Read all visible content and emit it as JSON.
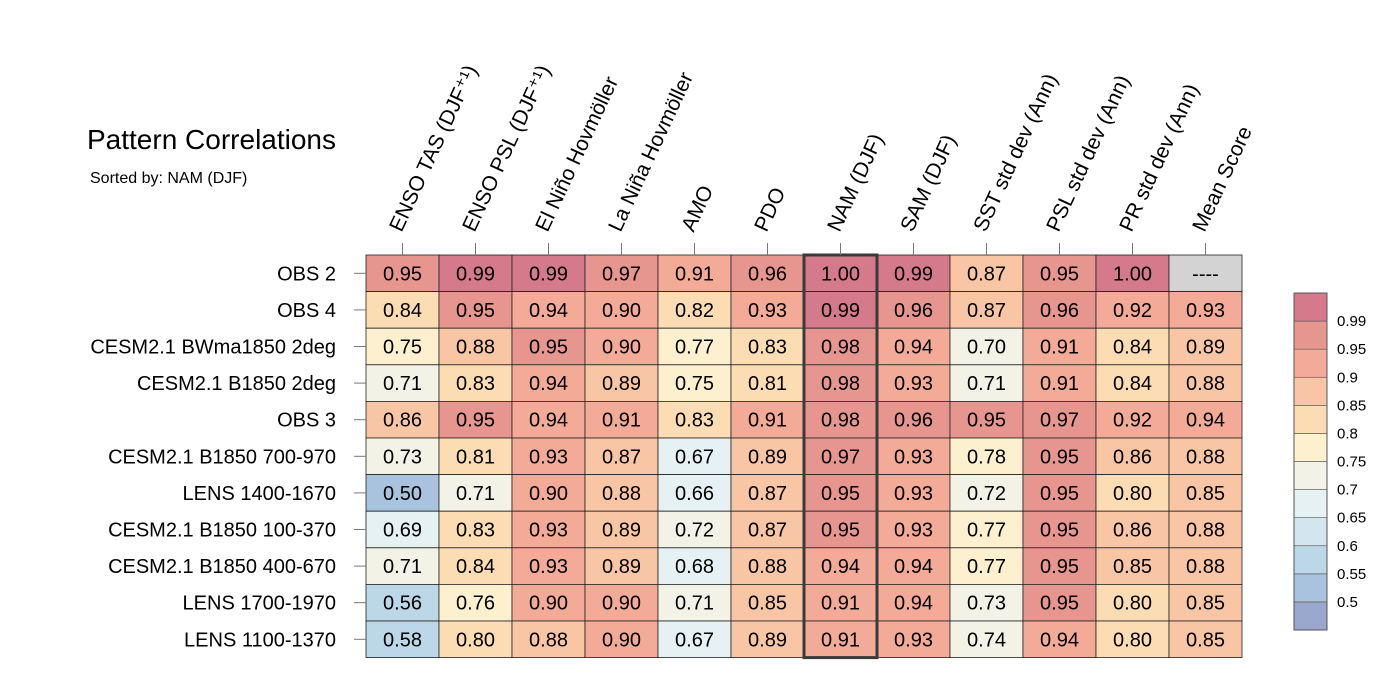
{
  "chart_data": {
    "type": "heatmap",
    "title": "Pattern Correlations",
    "subtitle": "Sorted by: NAM (DJF)",
    "columns": [
      "ENSO TAS (DJF⁺¹)",
      "ENSO PSL (DJF⁺¹)",
      "El Niño Hovmöller",
      "La Niña Hovmöller",
      "AMO",
      "PDO",
      "NAM (DJF)",
      "SAM (DJF)",
      "SST std dev (Ann)",
      "PSL std dev (Ann)",
      "PR std dev (Ann)",
      "Mean Score"
    ],
    "rows": [
      "OBS 2",
      "OBS 4",
      "CESM2.1 BWma1850 2deg",
      "CESM2.1 B1850 2deg",
      "OBS 3",
      "CESM2.1 B1850 700-970",
      "LENS 1400-1670",
      "CESM2.1 B1850 100-370",
      "CESM2.1 B1850 400-670",
      "LENS 1700-1970",
      "LENS 1100-1370"
    ],
    "values": [
      [
        0.95,
        0.99,
        0.99,
        0.97,
        0.91,
        0.96,
        1.0,
        0.99,
        0.87,
        0.95,
        1.0,
        null
      ],
      [
        0.84,
        0.95,
        0.94,
        0.9,
        0.82,
        0.93,
        0.99,
        0.96,
        0.87,
        0.96,
        0.92,
        0.93
      ],
      [
        0.75,
        0.88,
        0.95,
        0.9,
        0.77,
        0.83,
        0.98,
        0.94,
        0.7,
        0.91,
        0.84,
        0.89
      ],
      [
        0.71,
        0.83,
        0.94,
        0.89,
        0.75,
        0.81,
        0.98,
        0.93,
        0.71,
        0.91,
        0.84,
        0.88
      ],
      [
        0.86,
        0.95,
        0.94,
        0.91,
        0.83,
        0.91,
        0.98,
        0.96,
        0.95,
        0.97,
        0.92,
        0.94
      ],
      [
        0.73,
        0.81,
        0.93,
        0.87,
        0.67,
        0.89,
        0.97,
        0.93,
        0.78,
        0.95,
        0.86,
        0.88
      ],
      [
        0.5,
        0.71,
        0.9,
        0.88,
        0.66,
        0.87,
        0.95,
        0.93,
        0.72,
        0.95,
        0.8,
        0.85
      ],
      [
        0.69,
        0.83,
        0.93,
        0.89,
        0.72,
        0.87,
        0.95,
        0.93,
        0.77,
        0.95,
        0.86,
        0.88
      ],
      [
        0.71,
        0.84,
        0.93,
        0.89,
        0.68,
        0.88,
        0.94,
        0.94,
        0.77,
        0.95,
        0.85,
        0.88
      ],
      [
        0.56,
        0.76,
        0.9,
        0.9,
        0.71,
        0.85,
        0.91,
        0.94,
        0.73,
        0.95,
        0.8,
        0.85
      ],
      [
        0.58,
        0.8,
        0.88,
        0.9,
        0.67,
        0.89,
        0.91,
        0.93,
        0.74,
        0.94,
        0.8,
        0.85
      ]
    ],
    "missing_label": "----",
    "highlighted_column": "NAM (DJF)",
    "colorbar": {
      "levels": [
        0.5,
        0.55,
        0.6,
        0.65,
        0.7,
        0.75,
        0.8,
        0.85,
        0.9,
        0.95,
        0.99
      ],
      "tick_labels": [
        "0.5",
        "0.55",
        "0.6",
        "0.65",
        "0.7",
        "0.75",
        "0.8",
        "0.85",
        "0.9",
        "0.95",
        "0.99"
      ],
      "colors": [
        "#9aa8cd",
        "#a9c2dd",
        "#bcd7e7",
        "#d3e6ef",
        "#e6f1f3",
        "#f3f2e6",
        "#fdf0cf",
        "#fcdcb3",
        "#f9c6a5",
        "#f3ab98",
        "#e6968f",
        "#d47a8a"
      ],
      "missing_color": "#d3d3d3"
    }
  }
}
